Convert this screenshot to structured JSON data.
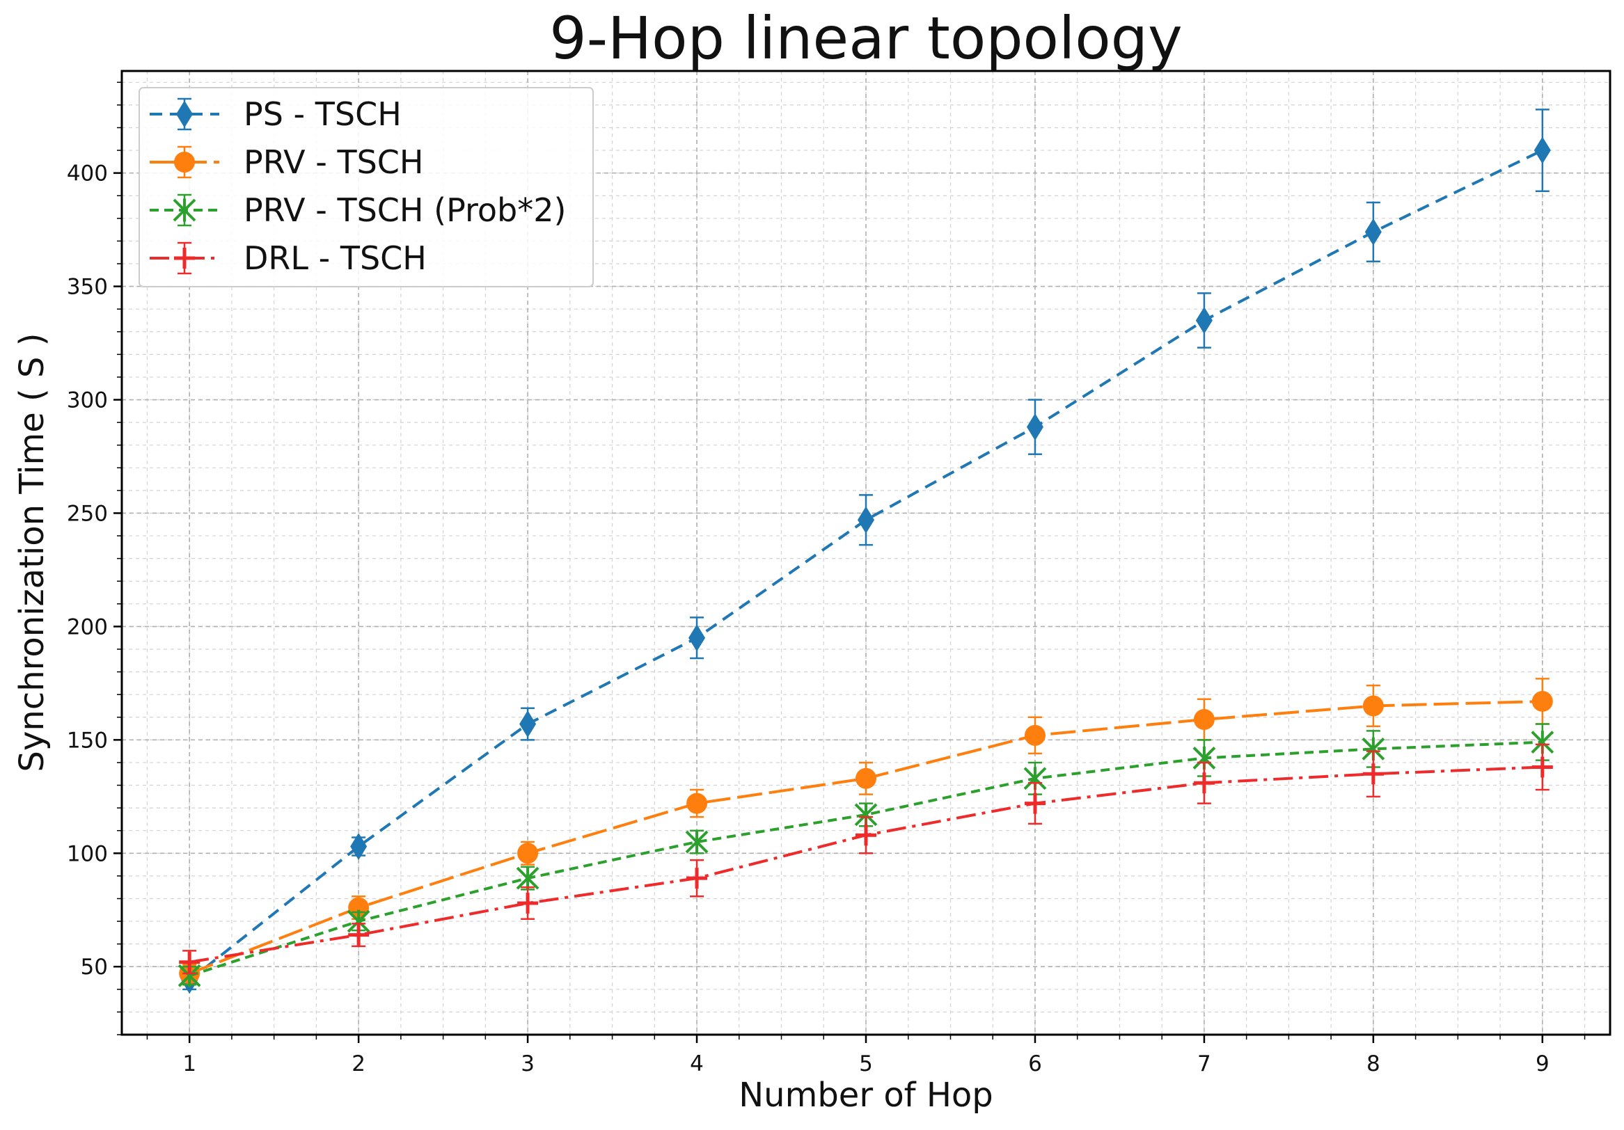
{
  "chart_data": {
    "type": "line",
    "title": "9-Hop linear topology",
    "xlabel": "Number of Hop",
    "ylabel": "Synchronization Time ( S )",
    "x": [
      1,
      2,
      3,
      4,
      5,
      6,
      7,
      8,
      9
    ],
    "xlim": [
      0.6,
      9.4
    ],
    "ylim": [
      20,
      445
    ],
    "xticks": [
      1,
      2,
      3,
      4,
      5,
      6,
      7,
      8,
      9
    ],
    "yticks": [
      50,
      100,
      150,
      200,
      250,
      300,
      350,
      400
    ],
    "grid": true,
    "legend_position": "top-left",
    "series": [
      {
        "name": "PS - TSCH",
        "color": "#1f77b4",
        "marker": "diamond",
        "linestyle": "dashed",
        "values": [
          44,
          103,
          157,
          195,
          247,
          288,
          335,
          374,
          410
        ],
        "errors": [
          4,
          4,
          7,
          9,
          11,
          12,
          12,
          13,
          18
        ]
      },
      {
        "name": "PRV - TSCH",
        "color": "#ff7f0e",
        "marker": "circle",
        "linestyle": "longdash",
        "values": [
          47,
          76,
          100,
          122,
          133,
          152,
          159,
          165,
          167
        ],
        "errors": [
          4,
          5,
          5,
          6,
          7,
          8,
          9,
          9,
          10
        ]
      },
      {
        "name": "PRV - TSCH (Prob*2)",
        "color": "#2ca02c",
        "marker": "x-star",
        "linestyle": "shortdash",
        "values": [
          46,
          70,
          89,
          105,
          117,
          133,
          142,
          146,
          149
        ],
        "errors": [
          4,
          4,
          5,
          5,
          5,
          7,
          8,
          8,
          8
        ]
      },
      {
        "name": "DRL - TSCH",
        "color": "#ef2a2a",
        "marker": "plus",
        "linestyle": "dashdot",
        "values": [
          52,
          64,
          78,
          89,
          108,
          122,
          131,
          135,
          138
        ],
        "errors": [
          5,
          5,
          7,
          8,
          8,
          9,
          9,
          10,
          10
        ]
      }
    ]
  }
}
